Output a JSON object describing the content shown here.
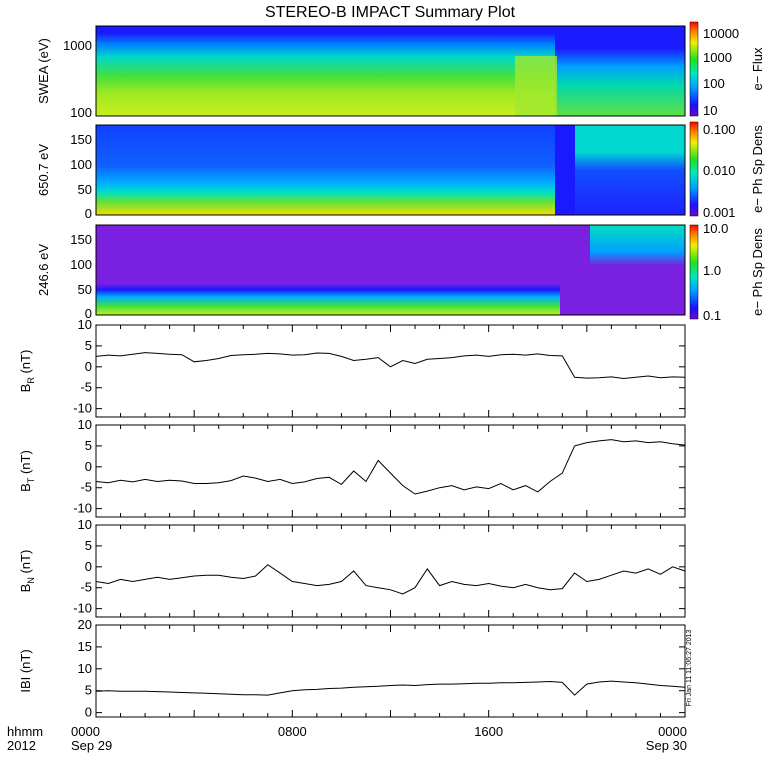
{
  "title": "STEREO-B IMPACT Summary Plot",
  "stamp": "Fri Jan 11 11:06:27 2013",
  "x_axis": {
    "row_label_1": "hhmm",
    "row_label_2": "2012",
    "ticks": [
      {
        "t": 0,
        "label": "0000",
        "date": "Sep 29"
      },
      {
        "t": 8,
        "label": "0800",
        "date": ""
      },
      {
        "t": 16,
        "label": "1600",
        "date": ""
      },
      {
        "t": 24,
        "label": "0000",
        "date": "Sep 30"
      }
    ]
  },
  "colorbars": [
    {
      "label": "e− Flux",
      "ticks": [
        "10000",
        "1000",
        "100",
        "10"
      ]
    },
    {
      "label": "e− Ph Sp Dens",
      "ticks": [
        "0.100",
        "0.010",
        "0.001"
      ]
    },
    {
      "label": "e− Ph Sp Dens",
      "ticks": [
        "10.0",
        "1.0",
        "0.1"
      ]
    }
  ],
  "spectrograms": [
    {
      "ylabel": "SWEA (eV)",
      "yticks": [
        "1000",
        "100"
      ]
    },
    {
      "ylabel": "650.7 eV",
      "yticks": [
        "150",
        "100",
        "50",
        "0"
      ]
    },
    {
      "ylabel": "246.6 eV",
      "yticks": [
        "150",
        "100",
        "50",
        "0"
      ]
    }
  ],
  "chart_data": [
    {
      "type": "line",
      "ylabel": "B",
      "ylabel_sub": "R",
      "ylabel_unit": "(nT)",
      "ylim": [
        -12,
        10
      ],
      "yticks": [
        10,
        5,
        0,
        -5,
        -10
      ],
      "series": [
        {
          "x": [
            0,
            0.5,
            1,
            1.5,
            2,
            2.5,
            3,
            3.5,
            4,
            4.5,
            5,
            5.5,
            6,
            6.5,
            7,
            7.5,
            8,
            8.5,
            9,
            9.5,
            10,
            10.5,
            11,
            11.5,
            12,
            12.5,
            13,
            13.5,
            14,
            14.5,
            15,
            15.5,
            16,
            16.5,
            17,
            17.5,
            18,
            18.5,
            19,
            19.5,
            20,
            20.5,
            21,
            21.5,
            22,
            22.5,
            23,
            23.5,
            24
          ],
          "y": [
            2.5,
            2.8,
            2.6,
            3.0,
            3.4,
            3.2,
            3.0,
            2.9,
            1.2,
            1.5,
            2.0,
            2.7,
            2.9,
            3.0,
            3.2,
            3.1,
            2.8,
            2.9,
            3.3,
            3.2,
            2.5,
            1.5,
            1.8,
            2.2,
            0.0,
            1.5,
            0.8,
            1.8,
            2.0,
            2.2,
            2.6,
            2.8,
            2.5,
            2.9,
            3.0,
            2.8,
            3.1,
            2.7,
            2.6,
            -2.5,
            -2.7,
            -2.6,
            -2.4,
            -2.8,
            -2.5,
            -2.2,
            -2.6,
            -2.4,
            -2.5
          ]
        }
      ]
    },
    {
      "type": "line",
      "ylabel": "B",
      "ylabel_sub": "T",
      "ylabel_unit": "(nT)",
      "ylim": [
        -12,
        10
      ],
      "yticks": [
        10,
        5,
        0,
        -5,
        -10
      ],
      "series": [
        {
          "x": [
            0,
            0.5,
            1,
            1.5,
            2,
            2.5,
            3,
            3.5,
            4,
            4.5,
            5,
            5.5,
            6,
            6.5,
            7,
            7.5,
            8,
            8.5,
            9,
            9.5,
            10,
            10.5,
            11,
            11.5,
            12,
            12.5,
            13,
            13.5,
            14,
            14.5,
            15,
            15.5,
            16,
            16.5,
            17,
            17.5,
            18,
            18.5,
            19,
            19.5,
            20,
            20.5,
            21,
            21.5,
            22,
            22.5,
            23,
            23.5,
            24
          ],
          "y": [
            -3.5,
            -3.8,
            -3.2,
            -3.6,
            -3.0,
            -3.5,
            -3.2,
            -3.4,
            -4.0,
            -4.0,
            -3.8,
            -3.3,
            -2.2,
            -2.7,
            -3.5,
            -3.0,
            -4.0,
            -3.6,
            -2.8,
            -2.5,
            -4.2,
            -1.0,
            -3.5,
            1.5,
            -1.5,
            -4.5,
            -6.5,
            -5.8,
            -5.0,
            -4.5,
            -5.5,
            -4.8,
            -5.2,
            -4.0,
            -5.5,
            -4.5,
            -6.0,
            -3.5,
            -1.5,
            5.0,
            5.8,
            6.2,
            6.5,
            6.0,
            6.2,
            5.8,
            6.0,
            5.5,
            5.2
          ]
        }
      ]
    },
    {
      "type": "line",
      "ylabel": "B",
      "ylabel_sub": "N",
      "ylabel_unit": "(nT)",
      "ylim": [
        -12,
        10
      ],
      "yticks": [
        10,
        5,
        0,
        -5,
        -10
      ],
      "series": [
        {
          "x": [
            0,
            0.5,
            1,
            1.5,
            2,
            2.5,
            3,
            3.5,
            4,
            4.5,
            5,
            5.5,
            6,
            6.5,
            7,
            7.5,
            8,
            8.5,
            9,
            9.5,
            10,
            10.5,
            11,
            11.5,
            12,
            12.5,
            13,
            13.5,
            14,
            14.5,
            15,
            15.5,
            16,
            16.5,
            17,
            17.5,
            18,
            18.5,
            19,
            19.5,
            20,
            20.5,
            21,
            21.5,
            22,
            22.5,
            23,
            23.5,
            24
          ],
          "y": [
            -3.5,
            -4.0,
            -3.0,
            -3.5,
            -3.0,
            -2.5,
            -3.0,
            -2.6,
            -2.2,
            -2.0,
            -2.0,
            -2.5,
            -2.8,
            -2.2,
            0.5,
            -1.5,
            -3.5,
            -4.0,
            -4.5,
            -4.2,
            -3.5,
            -1.0,
            -4.5,
            -5.0,
            -5.5,
            -6.5,
            -5.0,
            -0.5,
            -4.5,
            -3.5,
            -4.2,
            -4.5,
            -4.0,
            -4.6,
            -5.0,
            -4.2,
            -5.0,
            -5.5,
            -5.2,
            -1.5,
            -3.5,
            -3.0,
            -2.0,
            -1.0,
            -1.5,
            -0.5,
            -1.8,
            0.0,
            -1.0
          ]
        }
      ]
    },
    {
      "type": "line",
      "ylabel": "IBI",
      "ylabel_sub": "",
      "ylabel_unit": "(nT)",
      "ylim": [
        -1,
        20
      ],
      "yticks": [
        20,
        15,
        10,
        5,
        0
      ],
      "series": [
        {
          "x": [
            0,
            0.5,
            1,
            1.5,
            2,
            2.5,
            3,
            3.5,
            4,
            4.5,
            5,
            5.5,
            6,
            6.5,
            7,
            7.5,
            8,
            8.5,
            9,
            9.5,
            10,
            10.5,
            11,
            11.5,
            12,
            12.5,
            13,
            13.5,
            14,
            14.5,
            15,
            15.5,
            16,
            16.5,
            17,
            17.5,
            18,
            18.5,
            19,
            19.5,
            20,
            20.5,
            21,
            21.5,
            22,
            22.5,
            23,
            23.5,
            24
          ],
          "y": [
            4.9,
            5.0,
            4.9,
            4.9,
            4.9,
            4.8,
            4.7,
            4.6,
            4.5,
            4.4,
            4.3,
            4.2,
            4.1,
            4.1,
            4.0,
            4.5,
            5.0,
            5.2,
            5.3,
            5.5,
            5.6,
            5.8,
            5.9,
            6.0,
            6.2,
            6.3,
            6.2,
            6.4,
            6.5,
            6.5,
            6.6,
            6.7,
            6.7,
            6.8,
            6.8,
            6.9,
            7.0,
            7.1,
            6.9,
            4.0,
            6.5,
            7.0,
            7.2,
            7.0,
            6.8,
            6.5,
            6.2,
            6.0,
            5.8
          ]
        }
      ]
    }
  ]
}
